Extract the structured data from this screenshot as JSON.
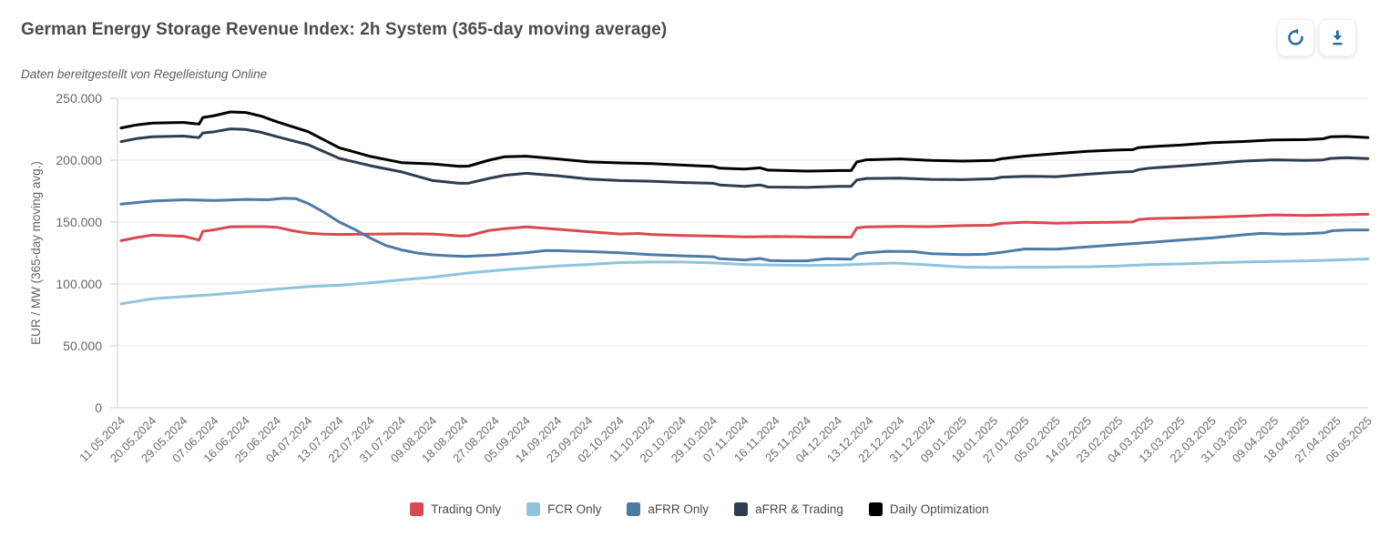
{
  "header": {
    "title": "German Energy Storage Revenue Index: 2h System (365-day moving average)",
    "subtitle": "Daten bereitgestellt von Regelleistung Online"
  },
  "toolbar": {
    "buttons": [
      {
        "icon": "refresh-icon",
        "color": "#2b6ba6"
      },
      {
        "icon": "download-icon",
        "color": "#2b6ba6"
      }
    ]
  },
  "chart_data": {
    "type": "line",
    "title": "German Energy Storage Revenue Index: 2h System (365-day moving average)",
    "ylabel": "EUR / MW (365-day moving avg.)",
    "ylim": [
      0,
      250000
    ],
    "ytick_labels": [
      "0",
      "50.000",
      "100.000",
      "150.000",
      "200.000",
      "250.000"
    ],
    "grid": "horizontal",
    "legend_position": "bottom",
    "categories": [
      "11.05.2024",
      "20.05.2024",
      "29.05.2024",
      "07.06.2024",
      "16.06.2024",
      "25.06.2024",
      "04.07.2024",
      "13.07.2024",
      "22.07.2024",
      "31.07.2024",
      "09.08.2024",
      "18.08.2024",
      "27.08.2024",
      "05.09.2024",
      "14.09.2024",
      "23.09.2024",
      "02.10.2024",
      "11.10.2024",
      "20.10.2024",
      "29.10.2024",
      "07.11.2024",
      "16.11.2024",
      "25.11.2024",
      "04.12.2024",
      "13.12.2024",
      "22.12.2024",
      "31.12.2024",
      "09.01.2025",
      "18.01.2025",
      "27.01.2025",
      "05.02.2025",
      "14.02.2025",
      "23.02.2025",
      "04.03.2025",
      "13.03.2025",
      "22.03.2025",
      "31.03.2025",
      "09.04.2025",
      "18.04.2025",
      "27.04.2025",
      "06.05.2025"
    ],
    "x_unit": "points are [category_index, EUR/MW]",
    "series": [
      {
        "name": "Trading Only",
        "color": "#d9494f",
        "points": [
          [
            0,
            135000
          ],
          [
            0.5,
            137500
          ],
          [
            1,
            139500
          ],
          [
            1.5,
            139000
          ],
          [
            2,
            138500
          ],
          [
            2.35,
            136500
          ],
          [
            2.5,
            135500
          ],
          [
            2.62,
            142500
          ],
          [
            3,
            143800
          ],
          [
            3.5,
            146200
          ],
          [
            4,
            146300
          ],
          [
            4.6,
            146300
          ],
          [
            5,
            145800
          ],
          [
            5.5,
            143000
          ],
          [
            6,
            141000
          ],
          [
            6.5,
            140300
          ],
          [
            7,
            140000
          ],
          [
            8,
            140200
          ],
          [
            9,
            140500
          ],
          [
            10,
            140400
          ],
          [
            10.85,
            138800
          ],
          [
            11.15,
            139000
          ],
          [
            11.8,
            143200
          ],
          [
            12.3,
            144600
          ],
          [
            13,
            146100
          ],
          [
            14,
            144200
          ],
          [
            15,
            142200
          ],
          [
            16,
            140400
          ],
          [
            16.6,
            140800
          ],
          [
            17,
            140000
          ],
          [
            18,
            139200
          ],
          [
            19,
            138700
          ],
          [
            20,
            138000
          ],
          [
            21,
            138300
          ],
          [
            22,
            138000
          ],
          [
            23,
            137900
          ],
          [
            23.42,
            137800
          ],
          [
            23.6,
            145200
          ],
          [
            23.9,
            146100
          ],
          [
            25,
            146500
          ],
          [
            26,
            146300
          ],
          [
            27,
            147100
          ],
          [
            27.9,
            147400
          ],
          [
            28.25,
            149000
          ],
          [
            29,
            149900
          ],
          [
            30,
            149100
          ],
          [
            31,
            149600
          ],
          [
            32,
            149900
          ],
          [
            32.45,
            150100
          ],
          [
            32.65,
            152100
          ],
          [
            33,
            152800
          ],
          [
            34,
            153300
          ],
          [
            35,
            154000
          ],
          [
            36,
            154800
          ],
          [
            36.6,
            155300
          ],
          [
            37,
            155800
          ],
          [
            38,
            155300
          ],
          [
            39,
            155800
          ],
          [
            40,
            156300
          ]
        ]
      },
      {
        "name": "FCR Only",
        "color": "#8ec4dc",
        "points": [
          [
            0,
            84000
          ],
          [
            1,
            88000
          ],
          [
            2,
            89800
          ],
          [
            3,
            91500
          ],
          [
            4,
            93500
          ],
          [
            5,
            95900
          ],
          [
            6,
            97900
          ],
          [
            7,
            99000
          ],
          [
            8,
            100900
          ],
          [
            9,
            103300
          ],
          [
            10,
            105500
          ],
          [
            11,
            108500
          ],
          [
            12,
            110800
          ],
          [
            13,
            112800
          ],
          [
            14,
            114500
          ],
          [
            15,
            115700
          ],
          [
            16,
            117300
          ],
          [
            17,
            117700
          ],
          [
            18,
            117700
          ],
          [
            19,
            117000
          ],
          [
            20,
            115700
          ],
          [
            21,
            115200
          ],
          [
            22,
            115000
          ],
          [
            23,
            115200
          ],
          [
            24,
            116200
          ],
          [
            24.8,
            116900
          ],
          [
            25.5,
            116000
          ],
          [
            26,
            115200
          ],
          [
            27,
            113700
          ],
          [
            28,
            113300
          ],
          [
            29,
            113600
          ],
          [
            30,
            113700
          ],
          [
            31,
            113900
          ],
          [
            32,
            114500
          ],
          [
            33,
            115700
          ],
          [
            34,
            116200
          ],
          [
            35,
            117000
          ],
          [
            36,
            117700
          ],
          [
            37,
            118200
          ],
          [
            38,
            118700
          ],
          [
            39,
            119400
          ],
          [
            40,
            120200
          ]
        ]
      },
      {
        "name": "aFRR Only",
        "color": "#4e7aa6",
        "points": [
          [
            0,
            164500
          ],
          [
            1,
            167000
          ],
          [
            2,
            168000
          ],
          [
            3,
            167500
          ],
          [
            4,
            168300
          ],
          [
            4.7,
            168000
          ],
          [
            5.2,
            169200
          ],
          [
            5.6,
            169000
          ],
          [
            6,
            165000
          ],
          [
            6.5,
            158000
          ],
          [
            7,
            150000
          ],
          [
            7.5,
            144000
          ],
          [
            8,
            137000
          ],
          [
            8.5,
            131000
          ],
          [
            9,
            127500
          ],
          [
            9.5,
            125000
          ],
          [
            10,
            123500
          ],
          [
            10.5,
            122800
          ],
          [
            11,
            122300
          ],
          [
            12,
            123300
          ],
          [
            13,
            125300
          ],
          [
            13.6,
            126900
          ],
          [
            14,
            126900
          ],
          [
            15,
            126200
          ],
          [
            16,
            125200
          ],
          [
            17,
            123700
          ],
          [
            18,
            122700
          ],
          [
            19,
            122000
          ],
          [
            19.2,
            120400
          ],
          [
            20,
            119400
          ],
          [
            20.5,
            120600
          ],
          [
            20.8,
            119000
          ],
          [
            21.3,
            118700
          ],
          [
            22,
            118700
          ],
          [
            22.6,
            120400
          ],
          [
            23,
            120200
          ],
          [
            23.42,
            120000
          ],
          [
            23.6,
            124000
          ],
          [
            23.9,
            125200
          ],
          [
            24.6,
            126400
          ],
          [
            25.4,
            126200
          ],
          [
            26,
            124400
          ],
          [
            27,
            123700
          ],
          [
            27.7,
            124000
          ],
          [
            28.25,
            125600
          ],
          [
            29,
            128300
          ],
          [
            30,
            128100
          ],
          [
            31,
            130000
          ],
          [
            32,
            131800
          ],
          [
            33,
            133500
          ],
          [
            34,
            135500
          ],
          [
            35,
            137200
          ],
          [
            36,
            139700
          ],
          [
            36.6,
            140900
          ],
          [
            37.3,
            140200
          ],
          [
            38,
            140600
          ],
          [
            38.6,
            141400
          ],
          [
            38.85,
            143000
          ],
          [
            39.3,
            143600
          ],
          [
            40,
            143700
          ]
        ]
      },
      {
        "name": "aFRR & Trading",
        "color": "#2e3d50",
        "points": [
          [
            0,
            215000
          ],
          [
            0.5,
            217500
          ],
          [
            1,
            219000
          ],
          [
            2,
            219500
          ],
          [
            2.35,
            218500
          ],
          [
            2.5,
            218300
          ],
          [
            2.62,
            222000
          ],
          [
            3,
            223000
          ],
          [
            3.5,
            225300
          ],
          [
            4,
            224800
          ],
          [
            4.5,
            222500
          ],
          [
            5,
            219000
          ],
          [
            6,
            212500
          ],
          [
            6.5,
            207000
          ],
          [
            7,
            201500
          ],
          [
            8,
            195500
          ],
          [
            9,
            190500
          ],
          [
            10,
            183500
          ],
          [
            10.85,
            181300
          ],
          [
            11.15,
            181500
          ],
          [
            11.8,
            185300
          ],
          [
            12.3,
            187800
          ],
          [
            13,
            189400
          ],
          [
            14,
            187400
          ],
          [
            15,
            184800
          ],
          [
            16,
            183500
          ],
          [
            17,
            183000
          ],
          [
            18,
            182000
          ],
          [
            19,
            181300
          ],
          [
            19.2,
            180000
          ],
          [
            20,
            178800
          ],
          [
            20.5,
            180000
          ],
          [
            20.75,
            178300
          ],
          [
            22,
            178000
          ],
          [
            23,
            178800
          ],
          [
            23.42,
            178800
          ],
          [
            23.6,
            184000
          ],
          [
            23.9,
            185200
          ],
          [
            25,
            185500
          ],
          [
            26,
            184500
          ],
          [
            27,
            184300
          ],
          [
            28,
            185000
          ],
          [
            28.25,
            186300
          ],
          [
            29,
            187000
          ],
          [
            30,
            186700
          ],
          [
            31,
            188700
          ],
          [
            32,
            190400
          ],
          [
            32.45,
            190800
          ],
          [
            32.65,
            192400
          ],
          [
            33,
            193600
          ],
          [
            34,
            195300
          ],
          [
            35,
            197300
          ],
          [
            36,
            199300
          ],
          [
            37,
            200300
          ],
          [
            38,
            199800
          ],
          [
            38.55,
            200200
          ],
          [
            38.8,
            201500
          ],
          [
            39.3,
            202000
          ],
          [
            40,
            201300
          ]
        ]
      },
      {
        "name": "Daily Optimization",
        "color": "#000000",
        "points": [
          [
            0,
            226000
          ],
          [
            0.5,
            228500
          ],
          [
            1,
            230000
          ],
          [
            2,
            230500
          ],
          [
            2.35,
            229500
          ],
          [
            2.5,
            229300
          ],
          [
            2.62,
            234500
          ],
          [
            3,
            236000
          ],
          [
            3.5,
            239000
          ],
          [
            4,
            238500
          ],
          [
            4.5,
            235500
          ],
          [
            5,
            231000
          ],
          [
            6,
            223000
          ],
          [
            6.5,
            216500
          ],
          [
            7,
            210000
          ],
          [
            8,
            203000
          ],
          [
            9,
            198000
          ],
          [
            10,
            197000
          ],
          [
            10.85,
            195000
          ],
          [
            11.15,
            195200
          ],
          [
            11.8,
            200000
          ],
          [
            12.3,
            202800
          ],
          [
            13,
            203200
          ],
          [
            14,
            201000
          ],
          [
            15,
            198600
          ],
          [
            16,
            197800
          ],
          [
            17,
            197300
          ],
          [
            18,
            196000
          ],
          [
            19,
            194900
          ],
          [
            19.2,
            193500
          ],
          [
            20,
            192800
          ],
          [
            20.5,
            193800
          ],
          [
            20.75,
            192000
          ],
          [
            22,
            191200
          ],
          [
            23,
            191600
          ],
          [
            23.42,
            191600
          ],
          [
            23.6,
            198500
          ],
          [
            23.9,
            200300
          ],
          [
            25,
            201000
          ],
          [
            26,
            199800
          ],
          [
            27,
            199300
          ],
          [
            28,
            199800
          ],
          [
            28.25,
            201200
          ],
          [
            29,
            203300
          ],
          [
            30,
            205300
          ],
          [
            31,
            207200
          ],
          [
            32,
            208200
          ],
          [
            32.45,
            208500
          ],
          [
            32.65,
            210200
          ],
          [
            33,
            210900
          ],
          [
            34,
            212200
          ],
          [
            35,
            214200
          ],
          [
            36,
            215100
          ],
          [
            37,
            216400
          ],
          [
            38,
            216600
          ],
          [
            38.55,
            217300
          ],
          [
            38.8,
            218900
          ],
          [
            39.3,
            219200
          ],
          [
            40,
            218300
          ]
        ]
      }
    ]
  }
}
